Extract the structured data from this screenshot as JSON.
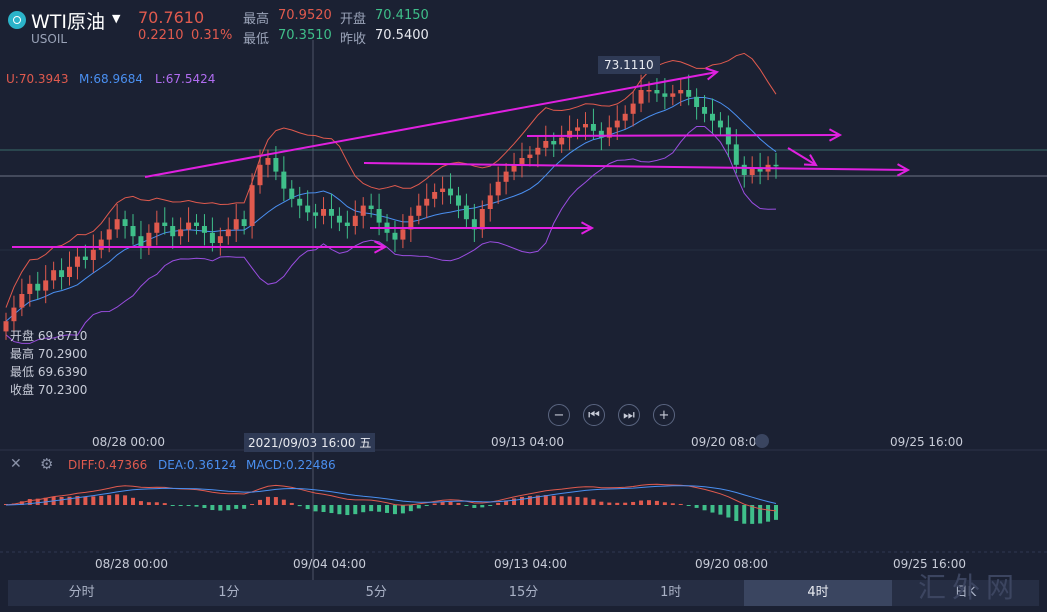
{
  "header": {
    "symbol": "WTI原油",
    "code": "USOIL",
    "price": "70.7610",
    "change": "0.2210",
    "change_pct": "0.31%",
    "high_label": "最高",
    "high": "70.9520",
    "open_label": "开盘",
    "open": "70.4150",
    "low_label": "最低",
    "low": "70.3510",
    "prev_label": "昨收",
    "prev": "70.5400"
  },
  "indicators": {
    "boll_u": "U:70.3943",
    "boll_m": "M:68.9684",
    "boll_l": "L:67.5424",
    "diff": "DIFF:0.47366",
    "dea": "DEA:0.36124",
    "macd": "MACD:0.22486"
  },
  "ohlc_panel": {
    "open": "开盘 69.8710",
    "high": "最高 70.2900",
    "low": "最低 69.6390",
    "close": "收盘 70.2300"
  },
  "crosshair_label": "2021/09/03 16:00 五",
  "peak_label": "73.1110",
  "x_labels_main": [
    "08/28 00:00",
    "09/13 04:00",
    "09/20 08:00",
    "09/25 16:00"
  ],
  "x_labels_macd": [
    "08/28 00:00",
    "09/04 04:00",
    "09/13 04:00",
    "09/20 08:00",
    "09/25 16:00"
  ],
  "tabs": [
    {
      "label": "分时",
      "active": false
    },
    {
      "label": "1分",
      "active": false
    },
    {
      "label": "5分",
      "active": false
    },
    {
      "label": "15分",
      "active": false
    },
    {
      "label": "1时",
      "active": false
    },
    {
      "label": "4时",
      "active": true
    },
    {
      "label": "日K",
      "active": false
    }
  ],
  "controls": [
    "zoom-out-icon",
    "step-back-icon",
    "step-forward-icon",
    "zoom-in-icon"
  ],
  "watermark": "汇外网",
  "colors": {
    "background": "#1b2133",
    "up": "#e05a4e",
    "down": "#3fbf8a",
    "boll_upper": "#e05a4e",
    "boll_mid": "#4a8ff0",
    "boll_lower": "#9a4de0",
    "trendline": "#e020e0"
  },
  "chart_data": [
    {
      "type": "candlestick",
      "title": "WTI原油 4时",
      "ylim": [
        63,
        74
      ],
      "close": [
        66.2,
        66.6,
        67.0,
        67.3,
        67.1,
        67.4,
        67.7,
        67.5,
        67.8,
        68.1,
        68.0,
        68.3,
        68.6,
        68.9,
        69.2,
        69.0,
        68.7,
        68.4,
        68.8,
        69.1,
        69.0,
        68.7,
        68.9,
        69.1,
        69.0,
        68.8,
        68.5,
        68.7,
        68.9,
        69.2,
        69.0,
        70.2,
        70.8,
        71.0,
        70.6,
        70.1,
        69.8,
        69.6,
        69.4,
        69.3,
        69.5,
        69.3,
        69.1,
        69.0,
        69.3,
        69.6,
        69.5,
        69.1,
        68.8,
        68.6,
        68.9,
        69.3,
        69.6,
        69.8,
        70.0,
        70.1,
        69.9,
        69.6,
        69.2,
        68.9,
        69.5,
        69.9,
        70.3,
        70.6,
        70.8,
        71.0,
        71.1,
        71.3,
        71.5,
        71.4,
        71.6,
        71.8,
        71.9,
        72.0,
        71.8,
        71.6,
        71.9,
        72.1,
        72.3,
        72.6,
        73.0,
        73.0,
        72.9,
        72.8,
        72.9,
        73.0,
        72.8,
        72.5,
        72.3,
        72.1,
        71.9,
        71.4,
        70.8,
        70.5,
        70.7,
        70.6,
        70.8,
        70.76
      ],
      "peak": 73.111
    },
    {
      "type": "bar",
      "title": "MACD",
      "diff": 0.47366,
      "dea": 0.36124,
      "macd": 0.22486
    }
  ]
}
